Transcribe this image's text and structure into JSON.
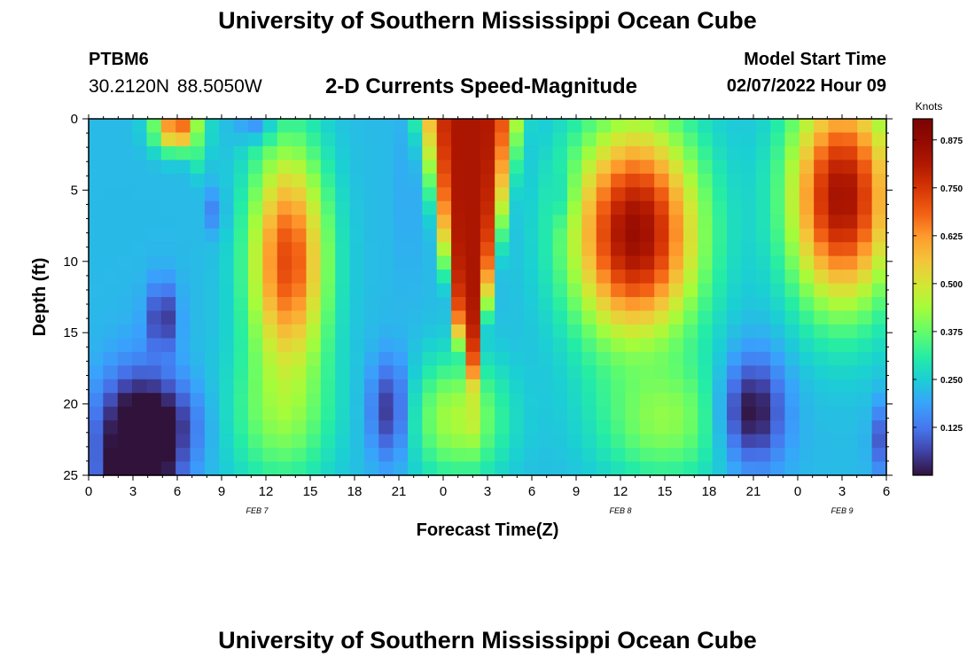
{
  "header": {
    "title": "University of Southern Mississippi Ocean Cube",
    "station": "PTBM6",
    "coordinates": "30.2120N  88.5050W",
    "subtitle": "2-D Currents Speed-Magnitude",
    "model_start_label": "Model Start Time",
    "model_start_value": "02/07/2022 Hour 09"
  },
  "footer": {
    "title": "University of Southern Mississippi Ocean Cube"
  },
  "chart_data": {
    "type": "heatmap",
    "xlabel": "Forecast Time(Z)",
    "ylabel": "Depth (ft)",
    "x_tick_labels": [
      "0",
      "3",
      "6",
      "9",
      "12",
      "15",
      "18",
      "21",
      "0",
      "3",
      "6",
      "9",
      "12",
      "15",
      "18",
      "21",
      "0",
      "3",
      "6"
    ],
    "date_labels": [
      {
        "text": "FEB 7",
        "at_tick": 3.8
      },
      {
        "text": "FEB 8",
        "at_tick": 12
      },
      {
        "text": "FEB 9",
        "at_tick": 17
      }
    ],
    "y_ticks": [
      0,
      5,
      10,
      15,
      20,
      25
    ],
    "ylim": [
      25,
      0
    ],
    "colorbar": {
      "label": "Knots",
      "ticks": [
        "0.125",
        "0.250",
        "0.375",
        "0.500",
        "0.625",
        "0.750",
        "0.875"
      ],
      "range": [
        0.0,
        0.93
      ]
    },
    "features": [
      {
        "type": "bg",
        "value": 0.22
      },
      {
        "type": "blob",
        "x": 3.3,
        "y": 25.0,
        "rx": 2.5,
        "ry": 6.0,
        "value": -0.14,
        "w": 1.0
      },
      {
        "type": "blob",
        "x": 5.0,
        "y": 14.0,
        "rx": 1.0,
        "ry": 2.5,
        "value": -0.05,
        "w": 0.7
      },
      {
        "type": "blob",
        "x": 4.3,
        "y": 21.5,
        "rx": 3.0,
        "ry": 3.0,
        "value": -0.08,
        "w": 0.8
      },
      {
        "type": "blob",
        "x": 6.0,
        "y": 0.6,
        "rx": 1.5,
        "ry": 1.6,
        "value": 0.72,
        "w": 0.95
      },
      {
        "type": "blob",
        "x": 7.6,
        "y": 2.4,
        "rx": 0.5,
        "ry": 1.6,
        "value": 0.38,
        "w": 0.7
      },
      {
        "type": "blob",
        "x": 8.6,
        "y": 6.5,
        "rx": 0.6,
        "ry": 1.5,
        "value": 0.08,
        "w": 0.7
      },
      {
        "type": "blob",
        "x": 13.0,
        "y": 21.0,
        "rx": 3.5,
        "ry": 5.0,
        "value": 0.4,
        "w": 0.9
      },
      {
        "type": "blob",
        "x": 13.5,
        "y": 10.0,
        "rx": 2.6,
        "ry": 8.0,
        "value": 0.72,
        "w": 1.0
      },
      {
        "type": "blob",
        "x": 11.2,
        "y": 0.7,
        "rx": 1.2,
        "ry": 0.8,
        "value": 0.12,
        "w": 0.7
      },
      {
        "type": "blob",
        "x": 20.5,
        "y": 20.5,
        "rx": 1.4,
        "ry": 3.5,
        "value": 0.0,
        "w": 1.0
      },
      {
        "type": "blob",
        "x": 21.6,
        "y": 5.0,
        "rx": 0.6,
        "ry": 7.0,
        "value": 0.17,
        "w": 0.7
      },
      {
        "type": "vee",
        "x0": 25.8,
        "half": 3.2,
        "ytip": 20.5,
        "value": 0.89,
        "soft": 0.9
      },
      {
        "type": "blob",
        "x": 25.0,
        "y": 21.0,
        "rx": 3.2,
        "ry": 4.2,
        "value": 0.46,
        "w": 0.95
      },
      {
        "type": "blob",
        "x": 32.3,
        "y": 5.5,
        "rx": 0.6,
        "ry": 2.0,
        "value": 0.1,
        "w": 0.9
      },
      {
        "type": "blob",
        "x": 37.0,
        "y": 8.0,
        "rx": 4.2,
        "ry": 7.5,
        "value": 0.86,
        "w": 1.0
      },
      {
        "type": "blob",
        "x": 39.0,
        "y": 21.0,
        "rx": 4.5,
        "ry": 4.5,
        "value": 0.45,
        "w": 0.85
      },
      {
        "type": "blob",
        "x": 45.0,
        "y": 20.5,
        "rx": 2.2,
        "ry": 4.0,
        "value": 0.0,
        "w": 1.0
      },
      {
        "type": "blob",
        "x": 51.0,
        "y": 5.5,
        "rx": 3.5,
        "ry": 7.5,
        "value": 0.84,
        "w": 1.0
      },
      {
        "type": "blob",
        "x": 53.8,
        "y": 22.5,
        "rx": 0.8,
        "ry": 2.5,
        "value": 0.04,
        "w": 0.8
      }
    ]
  }
}
